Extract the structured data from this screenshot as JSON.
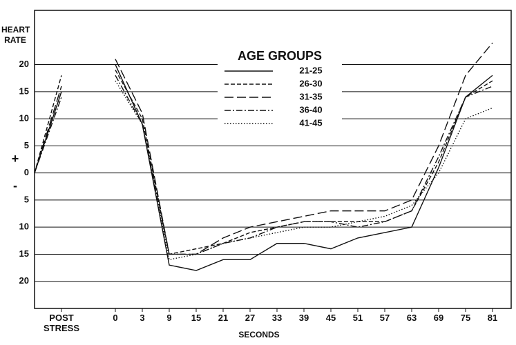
{
  "chart_data": {
    "type": "line",
    "y_label": "HEART RATE",
    "x_label": "SECONDS",
    "annotations": [
      "+",
      "-"
    ],
    "legend_title": "AGE GROUPS",
    "legend": "upper center",
    "grid": true,
    "categories": [
      null,
      "POST STRESS",
      null,
      "0",
      "3",
      "9",
      "15",
      "21",
      "27",
      "33",
      "39",
      "45",
      "51",
      "57",
      "63",
      "69",
      "75",
      "81"
    ],
    "ylim": [
      -25,
      30
    ],
    "yticks": [
      20,
      15,
      10,
      5,
      0,
      {
        "value": -5,
        "label": "5"
      },
      {
        "value": -10,
        "label": "10"
      },
      {
        "value": -15,
        "label": "15"
      },
      {
        "value": -20,
        "label": "20"
      }
    ],
    "series": [
      {
        "name": "21-25",
        "color": "#111111",
        "dash": "solid",
        "values": [
          0,
          15,
          null,
          20,
          9,
          -17,
          -18,
          -16,
          -16,
          -13,
          -13,
          -14,
          -12,
          -11,
          -10,
          1,
          14,
          18
        ]
      },
      {
        "name": "26-30",
        "color": "#111111",
        "dash": "dashed",
        "values": [
          0,
          18,
          null,
          19,
          10,
          -15,
          -14,
          -13,
          -11,
          -10,
          -9,
          -9,
          -9,
          -9,
          -7,
          2,
          14,
          17
        ]
      },
      {
        "name": "31-35",
        "color": "#111111",
        "dash": "longdash",
        "values": [
          0,
          16,
          null,
          21,
          11,
          -15,
          -15,
          -12,
          -10,
          -9,
          -8,
          -7,
          -7,
          -7,
          -5,
          5,
          18,
          24
        ]
      },
      {
        "name": "36-40",
        "color": "#111111",
        "dash": "dashdot",
        "values": [
          0,
          14,
          null,
          18,
          9,
          -15,
          -15,
          -13,
          -12,
          -10,
          -9,
          -9,
          -10,
          -9,
          -7,
          3,
          14,
          16
        ]
      },
      {
        "name": "41-45",
        "color": "#111111",
        "dash": "dotted",
        "values": [
          0,
          15,
          null,
          17,
          9,
          -16,
          -15,
          -13,
          -12,
          -11,
          -10,
          -10,
          -9,
          -8,
          -6,
          0,
          10,
          12
        ]
      }
    ]
  }
}
